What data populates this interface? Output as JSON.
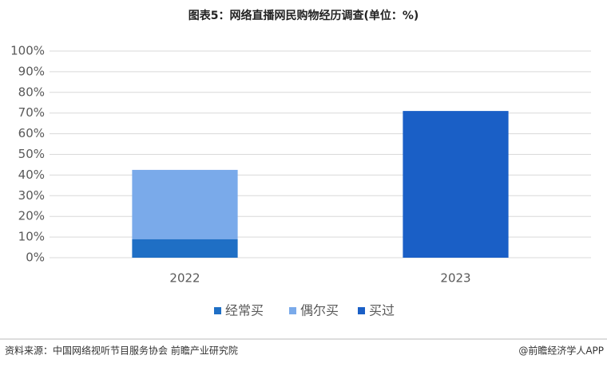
{
  "chart_data": {
    "type": "stacked_bar",
    "title": "图表5：网络直播网民购物经历调查(单位：%)",
    "categories": [
      "2022",
      "2023"
    ],
    "series": [
      {
        "name": "经常买",
        "color": "#1f6fc5",
        "values": [
          9,
          null
        ]
      },
      {
        "name": "偶尔买",
        "color": "#7aaaea",
        "values": [
          33.5,
          null
        ]
      },
      {
        "name": "买过",
        "color": "#1a5fc6",
        "values": [
          null,
          71
        ]
      }
    ],
    "ylim": [
      0,
      100
    ],
    "yticks": [
      {
        "value": 0,
        "label": "0%"
      },
      {
        "value": 10,
        "label": "10%"
      },
      {
        "value": 20,
        "label": "20%"
      },
      {
        "value": 30,
        "label": "30%"
      },
      {
        "value": 40,
        "label": "40%"
      },
      {
        "value": 50,
        "label": "50%"
      },
      {
        "value": 60,
        "label": "60%"
      },
      {
        "value": 70,
        "label": "70%"
      },
      {
        "value": 80,
        "label": "80%"
      },
      {
        "value": 90,
        "label": "90%"
      },
      {
        "value": 100,
        "label": "100%"
      }
    ],
    "grid": true,
    "legend": "bottom"
  },
  "footer": {
    "source": "资料来源：中国网络视听节目服务协会 前瞻产业研究院",
    "brand": "@前瞻经济学人APP"
  }
}
